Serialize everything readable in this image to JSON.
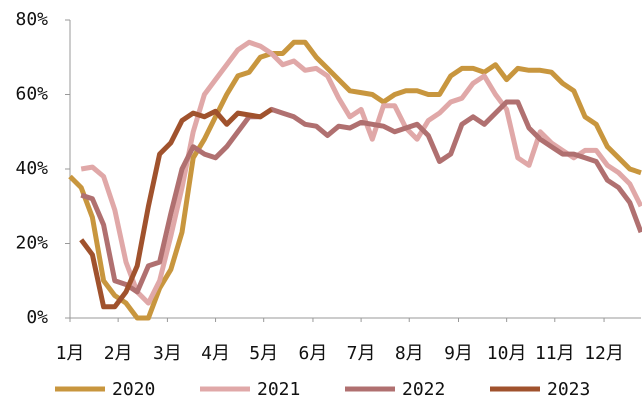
{
  "chart_data": {
    "type": "line",
    "x": [
      0,
      1,
      2,
      3,
      4,
      5,
      6,
      7,
      8,
      9,
      10,
      11,
      12,
      13,
      14,
      15,
      16,
      17,
      18,
      19,
      20,
      21,
      22,
      23,
      24,
      25,
      26,
      27,
      28,
      29,
      30,
      31,
      32,
      33,
      34,
      35,
      36,
      37,
      38,
      39,
      40,
      41,
      42,
      43,
      44,
      45,
      46,
      47,
      48,
      49,
      50,
      51
    ],
    "xlim": [
      0,
      51
    ],
    "xticks": [
      {
        "value": 0,
        "label": "1月"
      },
      {
        "value": 4.3,
        "label": "2月"
      },
      {
        "value": 8.7,
        "label": "3月"
      },
      {
        "value": 13,
        "label": "4月"
      },
      {
        "value": 17.3,
        "label": "5月"
      },
      {
        "value": 21.7,
        "label": "6月"
      },
      {
        "value": 26,
        "label": "7月"
      },
      {
        "value": 30.3,
        "label": "8月"
      },
      {
        "value": 34.7,
        "label": "9月"
      },
      {
        "value": 39,
        "label": "10月"
      },
      {
        "value": 43.3,
        "label": "11月"
      },
      {
        "value": 47.7,
        "label": "12月"
      }
    ],
    "ylim": [
      0,
      80
    ],
    "yticks": [
      {
        "value": 0,
        "label": "0%"
      },
      {
        "value": 20,
        "label": "20%"
      },
      {
        "value": 40,
        "label": "40%"
      },
      {
        "value": 60,
        "label": "60%"
      },
      {
        "value": 80,
        "label": "80%"
      }
    ],
    "legend": "bottom",
    "series": [
      {
        "name": "2020",
        "color": "#c8963e",
        "values": [
          38,
          35,
          27,
          10,
          6,
          4,
          0,
          0,
          8,
          13,
          23,
          43,
          48,
          54,
          60,
          65,
          66,
          70,
          71,
          71,
          74,
          74,
          70,
          67,
          64,
          61,
          60.5,
          60,
          58,
          60,
          61,
          61,
          60,
          60,
          65,
          67,
          67,
          66,
          68,
          64,
          67,
          66.5,
          66.5,
          66,
          63,
          61,
          54,
          52,
          46,
          43,
          40,
          39
        ]
      },
      {
        "name": "2021",
        "color": "#e0a8a8",
        "values": [
          null,
          40,
          40.5,
          38,
          29,
          15,
          7,
          4,
          10,
          22,
          35,
          50,
          60,
          64,
          68,
          72,
          74,
          73,
          71,
          68,
          69,
          66.5,
          67,
          65,
          59,
          54,
          56,
          48,
          57,
          57,
          51,
          48,
          53,
          55,
          58,
          59,
          63,
          65,
          60,
          56,
          43,
          41,
          50,
          47,
          45,
          43,
          45,
          45,
          41,
          39,
          36,
          30
        ]
      },
      {
        "name": "2022",
        "color": "#b07070",
        "values": [
          null,
          33,
          32,
          25,
          10,
          9,
          7,
          14,
          15,
          28,
          40,
          46,
          44,
          43,
          46,
          50,
          54,
          54,
          56,
          55,
          54,
          52,
          51.5,
          49,
          51.5,
          51,
          52.5,
          52,
          51.5,
          50,
          51,
          52,
          49,
          42,
          44,
          52,
          54,
          52,
          55,
          58,
          58,
          51,
          48,
          46,
          44,
          44,
          43,
          42,
          37,
          35,
          31,
          23
        ]
      },
      {
        "name": "2023",
        "color": "#a0522d",
        "values": [
          null,
          21,
          17,
          3,
          3,
          7,
          14,
          30,
          44,
          47,
          53,
          55,
          54,
          55.5,
          52,
          55,
          54.5,
          54,
          56,
          null,
          null,
          null,
          null,
          null,
          null,
          null,
          null,
          null,
          null,
          null,
          null,
          null,
          null,
          null,
          null,
          null,
          null,
          null,
          null,
          null,
          null,
          null,
          null,
          null,
          null,
          null,
          null,
          null,
          null,
          null,
          null,
          null
        ]
      }
    ]
  }
}
